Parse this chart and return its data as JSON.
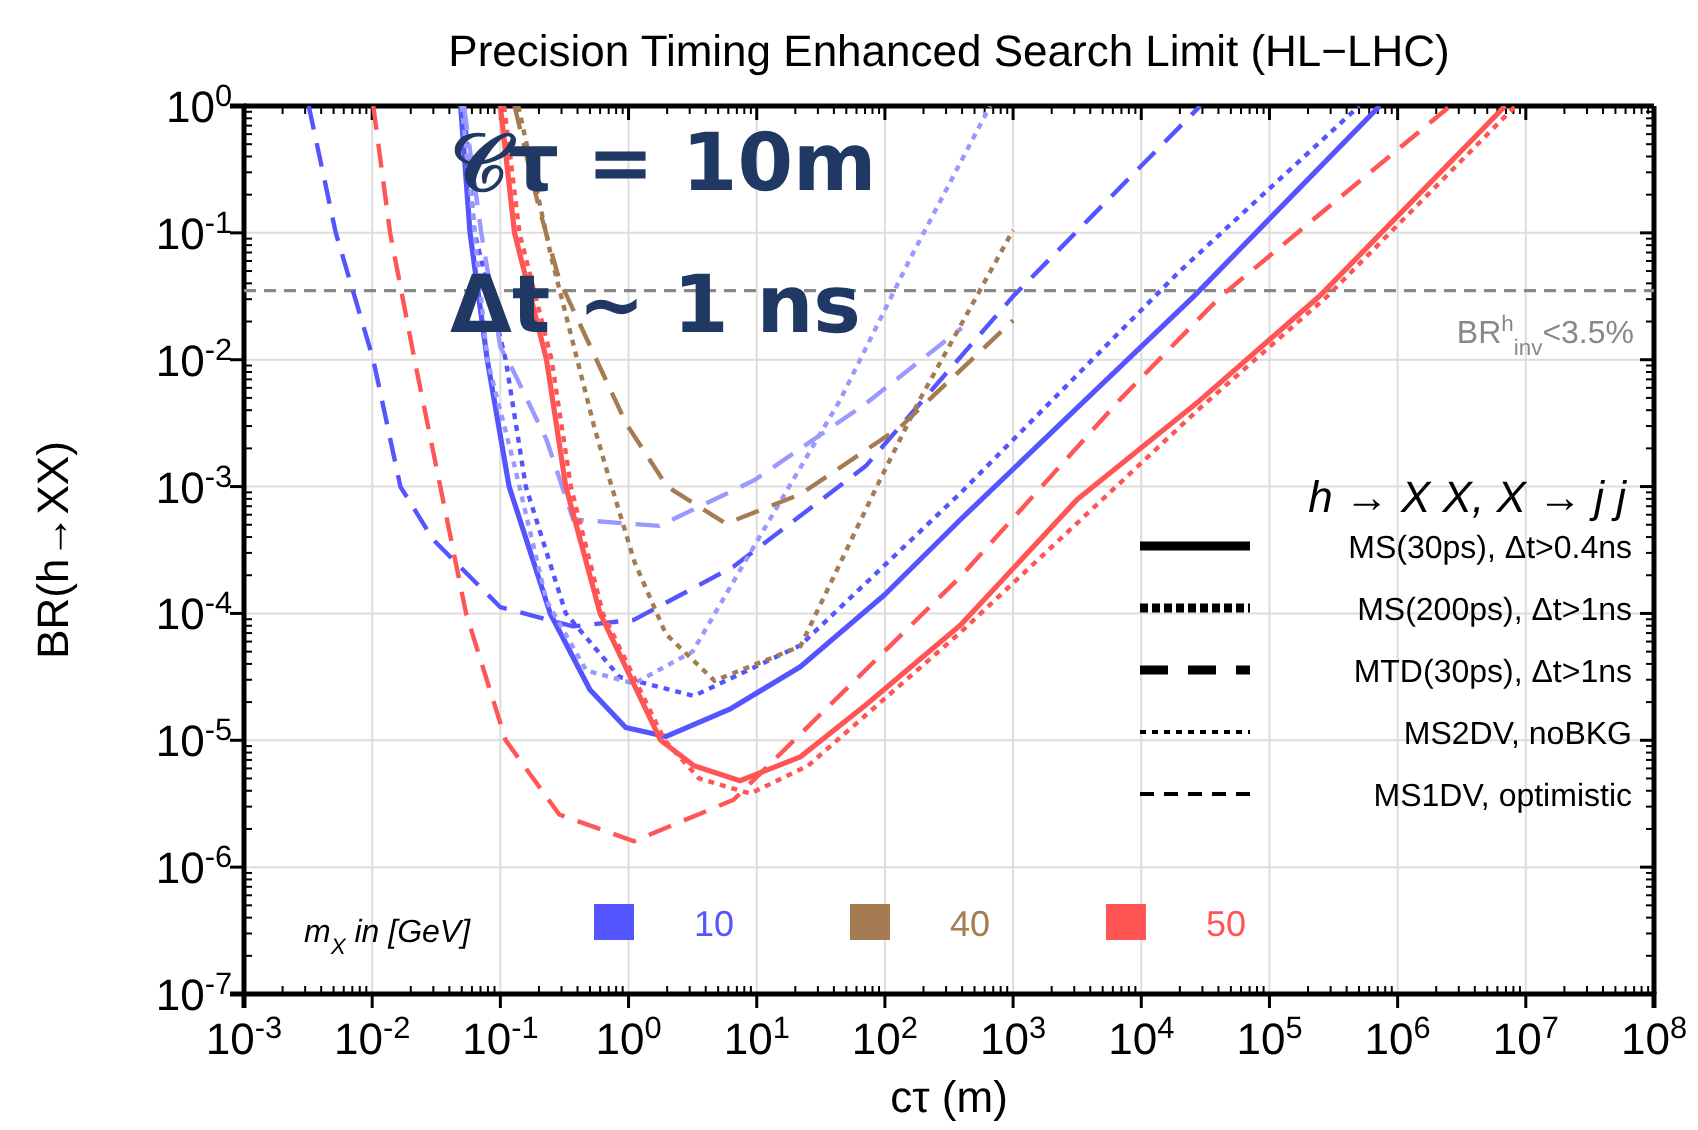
{
  "chart_data": {
    "type": "line",
    "title": "Precision Timing Enhanced Search Limit (HL−LHC)",
    "xlabel": "cτ (m)",
    "ylabel": "BR(h→XX)",
    "log": "xy",
    "grid": true,
    "legend": "bottom",
    "xlim": [
      0.001,
      100000000
    ],
    "ylim": [
      1e-07,
      1
    ],
    "xticks": [
      {
        "value": 0.001,
        "label": "10$^{-3}$"
      },
      {
        "value": 0.01,
        "label": "10$^{-2}$"
      },
      {
        "value": 0.1,
        "label": "10$^{-1}$"
      },
      {
        "value": 1,
        "label": "10$^{0}$"
      },
      {
        "value": 10,
        "label": "10$^{1}$"
      },
      {
        "value": 100,
        "label": "10$^{2}$"
      },
      {
        "value": 1000,
        "label": "10$^{3}$"
      },
      {
        "value": 10000,
        "label": "10$^{4}$"
      },
      {
        "value": 100000,
        "label": "10$^{5}$"
      },
      {
        "value": 1000000,
        "label": "10$^{6}$"
      },
      {
        "value": 10000000,
        "label": "10$^{7}$"
      },
      {
        "value": 100000000,
        "label": "10$^{8}$"
      }
    ],
    "yticks": [
      {
        "value": 1e-07,
        "label": "10$^{-7}$"
      },
      {
        "value": 1e-06,
        "label": "10$^{-6}$"
      },
      {
        "value": 1e-05,
        "label": "10$^{-5}$"
      },
      {
        "value": 0.0001,
        "label": "10$^{-4}$"
      },
      {
        "value": 0.001,
        "label": "10$^{-3}$"
      },
      {
        "value": 0.01,
        "label": "10$^{-2}$"
      },
      {
        "value": 0.1,
        "label": "10$^{-1}$"
      },
      {
        "value": 1,
        "label": "10$^{0}$"
      }
    ],
    "ref_lines": [
      {
        "axis": "y",
        "value": 0.035,
        "label": "BR$^{h}$$_{inv}$<3.5%",
        "color": "#888888",
        "line_style": "dashed"
      }
    ],
    "annotations": [
      "𝒞τ = 10m",
      "Δt ~ 1 ns",
      "h → X X, X → j j",
      "MS(30ps), Δt>0.4ns",
      "MS(200ps), Δt>1ns",
      "MTD(30ps), Δt>1ns",
      "MS2DV, noBKG",
      "MS1DV, optimistic",
      "m$_{X}$ in [GeV]"
    ],
    "series": [
      {
        "name": "10",
        "color": "#5555ff",
        "line_style": "solid",
        "x": [
          0.049,
          0.058,
          0.079,
          0.117,
          0.245,
          0.5,
          0.95,
          1.95,
          6.3,
          21.9,
          100,
          389,
          3160,
          25700,
          724000
        ],
        "values": [
          1,
          0.1,
          0.01,
          0.001,
          0.0001,
          2.5e-05,
          1.26e-05,
          1.07e-05,
          1.78e-05,
          3.8e-05,
          0.000141,
          0.00055,
          0.00417,
          0.0316,
          1
        ]
      },
      {
        "color": "#5555ff",
        "line_style": "dotted",
        "x": [
          0.052,
          0.063,
          0.11,
          0.158,
          0.324,
          0.85,
          3.24,
          21.9,
          389,
          20000,
          501000
        ],
        "values": [
          1,
          0.1,
          0.01,
          0.001,
          0.0001,
          3.16e-05,
          2.24e-05,
          5.6e-05,
          0.00089,
          0.05,
          1
        ]
      },
      {
        "color": "#5555ff",
        "line_style": "dashed",
        "x": [
          0.0032,
          0.0052,
          0.0102,
          0.0166,
          0.03,
          0.1,
          0.37,
          1.1,
          6.6,
          70.8,
          1000,
          28800
        ],
        "values": [
          1,
          0.1,
          0.01,
          0.001,
          0.00038,
          0.000112,
          7.9e-05,
          8.9e-05,
          0.000234,
          0.00145,
          0.0316,
          1
        ]
      },
      {
        "color": "#9999ff",
        "line_style": "dotted",
        "x": [
          0.05,
          0.079,
          0.129,
          0.229,
          0.468,
          1.1,
          3.16,
          9.55,
          44.7,
          158,
          661
        ],
        "values": [
          1,
          0.01,
          0.00145,
          0.000126,
          3.55e-05,
          2.8e-05,
          5e-05,
          0.00034,
          0.0048,
          0.063,
          1
        ]
      },
      {
        "color": "#9999ff",
        "line_style": "dashed",
        "x": [
          0.052,
          0.071,
          0.1,
          0.129,
          0.229,
          0.37,
          1.74,
          9.55,
          70.8,
          398
        ],
        "values": [
          1,
          0.1,
          0.0126,
          0.0078,
          0.00234,
          0.00055,
          0.00049,
          0.00112,
          0.0045,
          0.0178
        ]
      },
      {
        "name": "40",
        "color": "#a57c52",
        "line_style": "dashed",
        "x": [
          0.129,
          0.2,
          0.288,
          0.562,
          0.955,
          2.0,
          5.75,
          21.9,
          132,
          1000
        ],
        "values": [
          1,
          0.158,
          0.0427,
          0.01,
          0.00316,
          0.001,
          0.00051,
          0.00087,
          0.00295,
          0.0204
        ]
      },
      {
        "color": "#a57c52",
        "line_style": "dotted",
        "x": [
          0.138,
          0.251,
          0.537,
          0.661,
          1.12,
          1.95,
          4.68,
          21.9,
          91.2,
          186,
          1000
        ],
        "values": [
          1,
          0.063,
          0.00302,
          0.00145,
          0.00025,
          6.9e-05,
          2.95e-05,
          5.5e-05,
          0.00112,
          0.0048,
          0.105
        ]
      },
      {
        "name": "50",
        "color": "#ff5555",
        "line_style": "solid",
        "x": [
          0.1,
          0.129,
          0.229,
          0.324,
          0.6,
          1.78,
          3.24,
          7.4,
          21.9,
          70.8,
          389,
          3160,
          28800,
          245000,
          6900000
        ],
        "values": [
          1,
          0.1,
          0.01,
          0.001,
          0.0001,
          1e-05,
          6.3e-06,
          4.8e-06,
          7.4e-06,
          1.9e-05,
          8.1e-05,
          0.00079,
          0.0048,
          0.0316,
          1
        ]
      },
      {
        "color": "#ff5555",
        "line_style": "dotted",
        "x": [
          0.107,
          0.141,
          0.251,
          0.355,
          0.631,
          1.91,
          3.55,
          8.9,
          25.1,
          389,
          28800,
          282000,
          8300000
        ],
        "values": [
          1,
          0.1,
          0.01,
          0.001,
          0.0001,
          1e-05,
          5e-06,
          3.8e-06,
          6.3e-06,
          7.1e-05,
          0.00417,
          0.0316,
          1
        ]
      },
      {
        "color": "#ff5555",
        "line_style": "dashed",
        "x": [
          0.0102,
          0.0138,
          0.0214,
          0.034,
          0.054,
          0.11,
          0.288,
          1.1,
          6.6,
          21.9,
          389,
          6760,
          41700,
          2570000
        ],
        "values": [
          1,
          0.1,
          0.01,
          0.001,
          0.0001,
          1e-05,
          2.6e-06,
          1.6e-06,
          3.4e-06,
          1.12e-05,
          0.000195,
          0.0048,
          0.0316,
          1
        ]
      }
    ]
  }
}
